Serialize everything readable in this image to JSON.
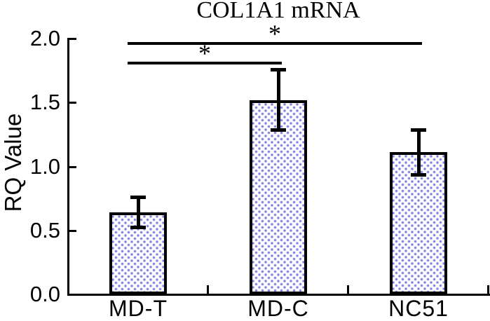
{
  "figure": {
    "title": "COL1A1 mRNA",
    "ylabel": "RQ Value"
  },
  "chart_data": {
    "type": "bar",
    "title": "COL1A1 mRNA",
    "xlabel": "",
    "ylabel": "RQ Value",
    "categories": [
      "MD-T",
      "MD-C",
      "NC51"
    ],
    "values": [
      0.64,
      1.52,
      1.11
    ],
    "error_bars": [
      0.12,
      0.24,
      0.18
    ],
    "ylim": [
      0.0,
      2.0
    ],
    "yticks": [
      0.0,
      0.5,
      1.0,
      1.5,
      2.0
    ],
    "ytick_labels": [
      "0.0",
      "0.5",
      "1.0",
      "1.5",
      "2.0"
    ],
    "grid": false,
    "legend": false,
    "bar_style": {
      "fill": "white with light periwinkle polka-dot pattern",
      "dot_color": "#7d7de0",
      "border_color": "#000000"
    },
    "significance_brackets": [
      {
        "from": "MD-T",
        "to": "MD-C",
        "from_index": 0,
        "to_index": 1,
        "y": 1.81,
        "label": "*"
      },
      {
        "from": "MD-T",
        "to": "NC51",
        "from_index": 0,
        "to_index": 2,
        "y": 1.96,
        "label": "*"
      }
    ]
  }
}
